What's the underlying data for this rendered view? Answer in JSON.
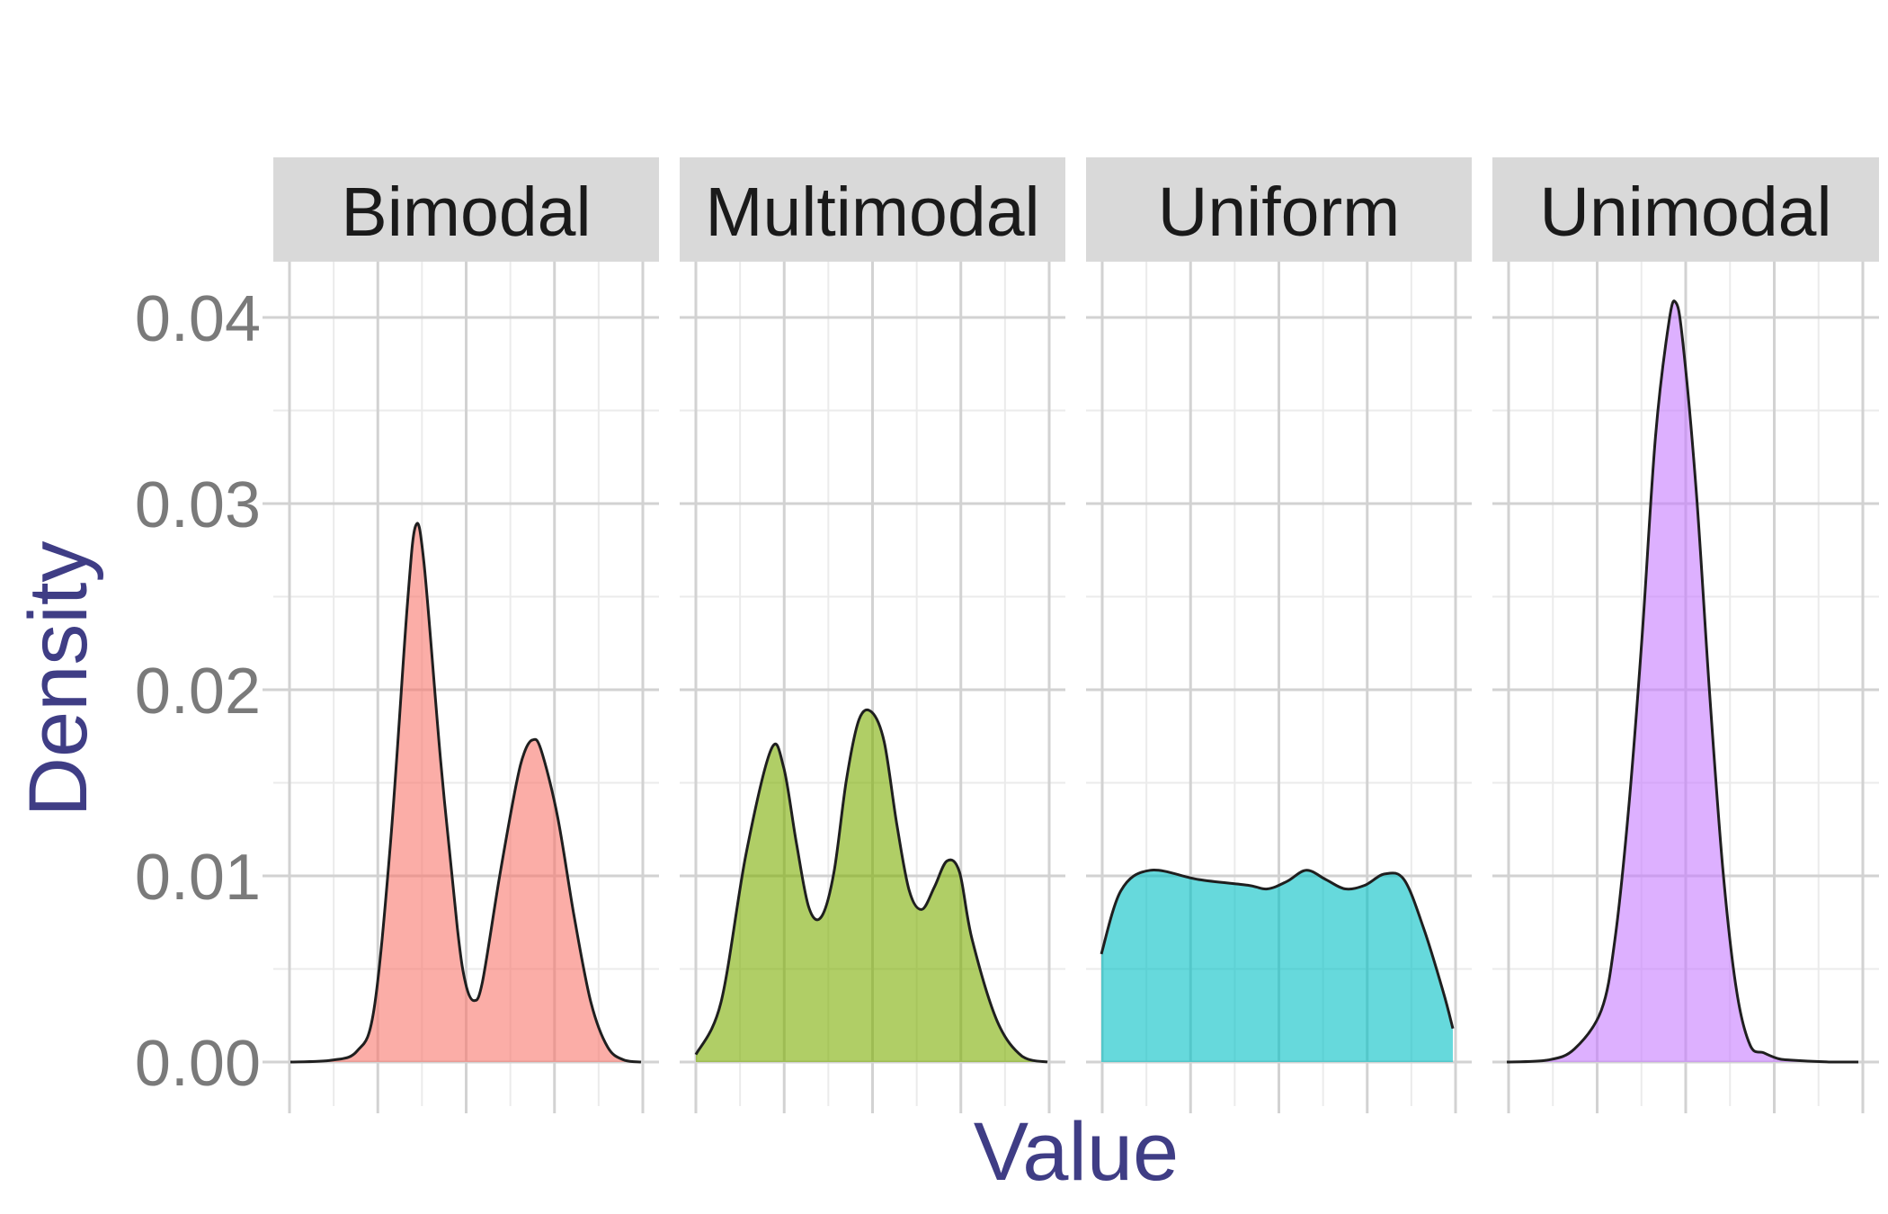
{
  "chart_data": {
    "type": "density",
    "xlabel": "Value",
    "ylabel": "Density",
    "ylim": [
      0,
      0.04
    ],
    "y_ticks": [
      "0.00",
      "0.01",
      "0.02",
      "0.03",
      "0.04"
    ],
    "x_ticks_labels_shown": false,
    "grid": true,
    "facets": [
      {
        "name": "Bimodal",
        "color": "#F8766D",
        "points": [
          [
            0,
            0
          ],
          [
            5,
            0.0001
          ],
          [
            8,
            0.0006
          ],
          [
            10,
            0.0028
          ],
          [
            12,
            0.0118
          ],
          [
            14,
            0.0245
          ],
          [
            15,
            0.0288
          ],
          [
            16,
            0.0268
          ],
          [
            18,
            0.0162
          ],
          [
            20,
            0.0072
          ],
          [
            21,
            0.0042
          ],
          [
            22,
            0.0033
          ],
          [
            23,
            0.0043
          ],
          [
            25,
            0.0098
          ],
          [
            27,
            0.0148
          ],
          [
            28,
            0.0166
          ],
          [
            29,
            0.0173
          ],
          [
            30,
            0.0168
          ],
          [
            32,
            0.0132
          ],
          [
            34,
            0.0078
          ],
          [
            36,
            0.0032
          ],
          [
            38,
            0.0008
          ],
          [
            40,
            0.0001
          ],
          [
            42,
            0
          ]
        ]
      },
      {
        "name": "Multimodal",
        "color": "#7CAE00",
        "points": [
          [
            0,
            0.0004
          ],
          [
            2,
            0.0032
          ],
          [
            4,
            0.0112
          ],
          [
            6,
            0.0168
          ],
          [
            7,
            0.0158
          ],
          [
            8,
            0.0118
          ],
          [
            9,
            0.0083
          ],
          [
            10,
            0.0078
          ],
          [
            11,
            0.0102
          ],
          [
            12,
            0.0152
          ],
          [
            13,
            0.0184
          ],
          [
            14,
            0.0188
          ],
          [
            15,
            0.0172
          ],
          [
            16,
            0.0128
          ],
          [
            17,
            0.0092
          ],
          [
            18,
            0.0082
          ],
          [
            19,
            0.0094
          ],
          [
            20,
            0.0108
          ],
          [
            21,
            0.0102
          ],
          [
            22,
            0.0066
          ],
          [
            24,
            0.0022
          ],
          [
            26,
            0.0003
          ],
          [
            28,
            0
          ]
        ]
      },
      {
        "name": "Uniform",
        "color": "#00BFC4",
        "points": [
          [
            0,
            0.0058
          ],
          [
            2,
            0.0092
          ],
          [
            5,
            0.0103
          ],
          [
            10,
            0.0098
          ],
          [
            15,
            0.0095
          ],
          [
            17,
            0.0093
          ],
          [
            19,
            0.0097
          ],
          [
            21,
            0.0103
          ],
          [
            23,
            0.0098
          ],
          [
            25,
            0.0093
          ],
          [
            27,
            0.0095
          ],
          [
            29,
            0.0101
          ],
          [
            31,
            0.0098
          ],
          [
            33,
            0.0072
          ],
          [
            35,
            0.0038
          ],
          [
            36,
            0.0018
          ]
        ]
      },
      {
        "name": "Unimodal",
        "color": "#C77CFF",
        "points": [
          [
            0,
            0
          ],
          [
            3,
            0.0001
          ],
          [
            5,
            0.0007
          ],
          [
            7,
            0.0028
          ],
          [
            8,
            0.0066
          ],
          [
            9,
            0.0135
          ],
          [
            10,
            0.0228
          ],
          [
            11,
            0.0336
          ],
          [
            12,
            0.0398
          ],
          [
            12.5,
            0.0408
          ],
          [
            13,
            0.0388
          ],
          [
            14,
            0.0308
          ],
          [
            15,
            0.0198
          ],
          [
            16,
            0.0102
          ],
          [
            17,
            0.0038
          ],
          [
            18,
            0.0009
          ],
          [
            19,
            0.0005
          ],
          [
            20,
            0.0002
          ],
          [
            21,
            0.0001
          ],
          [
            24,
            0
          ],
          [
            26,
            0
          ]
        ]
      }
    ]
  }
}
